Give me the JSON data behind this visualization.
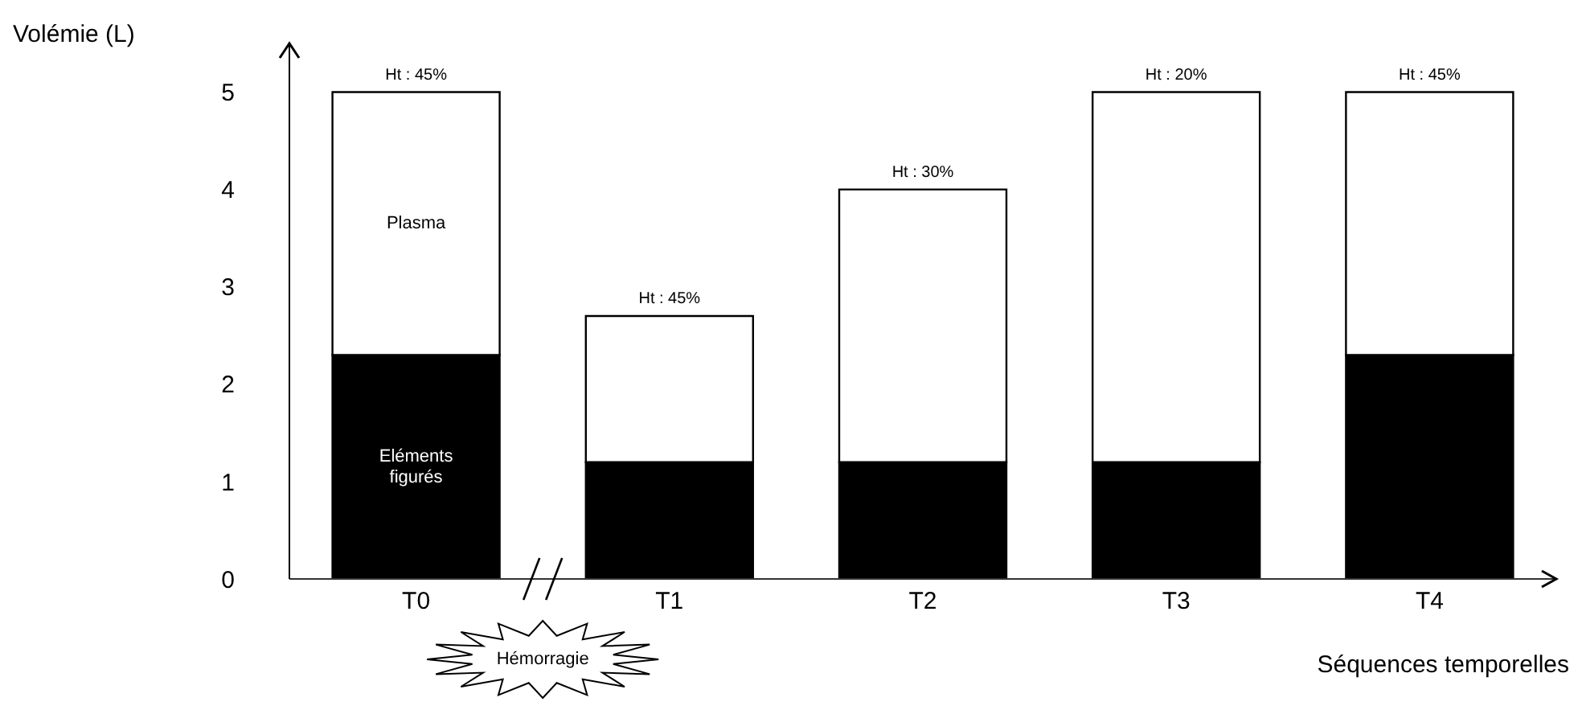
{
  "chart_data": {
    "type": "bar",
    "stacked": true,
    "xlabel": "Séquences temporelles",
    "ylabel": "Volémie (L)",
    "categories": [
      "T0",
      "T1",
      "T2",
      "T3",
      "T4"
    ],
    "series": [
      {
        "name": "Eléments figurés",
        "color": "#000000",
        "values": [
          2.3,
          1.2,
          1.2,
          1.2,
          2.3
        ]
      },
      {
        "name": "Plasma",
        "color": "#ffffff",
        "values": [
          2.7,
          1.5,
          2.8,
          3.8,
          2.7
        ]
      }
    ],
    "ylim": [
      0,
      5.5
    ],
    "yticks": [
      0,
      1,
      2,
      3,
      4,
      5
    ],
    "grid": false,
    "legend": false,
    "annotations": [
      {
        "text": "Ht : 45%",
        "x": "T0",
        "y": 5
      },
      {
        "text": "Ht : 45%",
        "x": "T1",
        "y": 2.7
      },
      {
        "text": "Ht : 30%",
        "x": "T2",
        "y": 4
      },
      {
        "text": "Ht : 20%",
        "x": "T3",
        "y": 5
      },
      {
        "text": "Ht : 45%",
        "x": "T4",
        "y": 5
      },
      "Hémorragie"
    ]
  }
}
